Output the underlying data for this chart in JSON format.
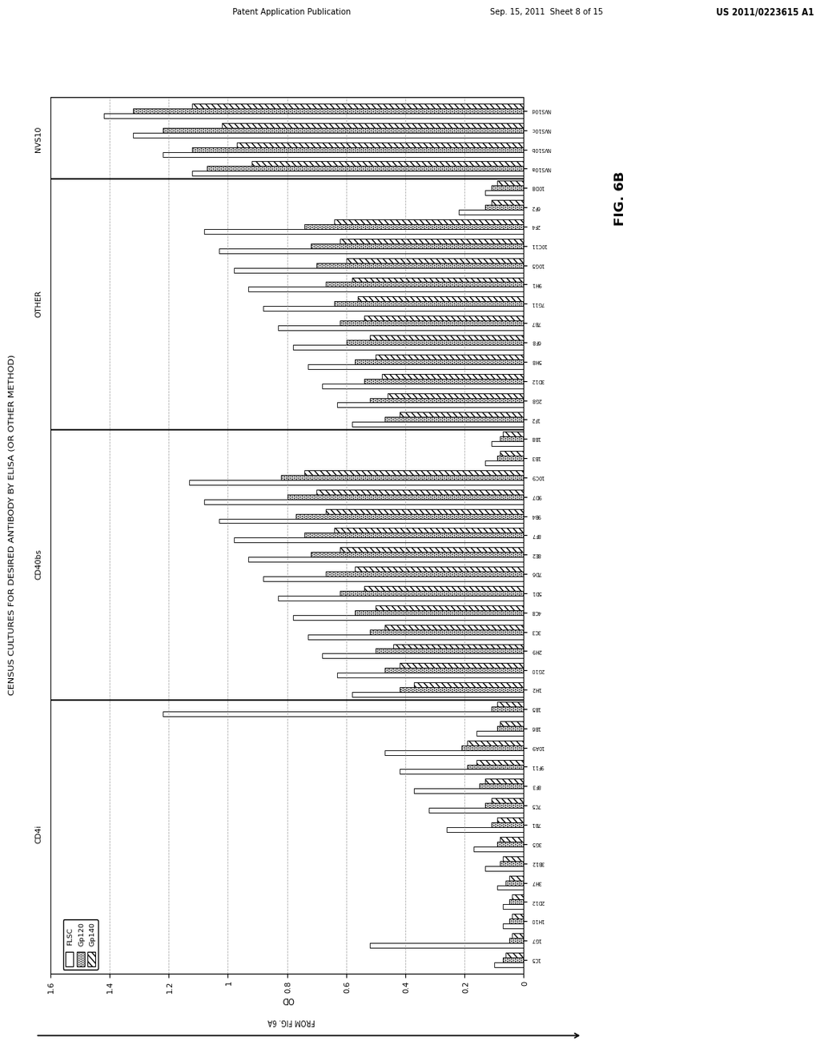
{
  "title": "CENSUS CULTURES FOR DESIRED ANTIBODY BY ELISA (OR OTHER METHOD)",
  "ylabel": "OD",
  "fig_label": "FIG. 6B",
  "from_label": "FROM FIG. 6A",
  "ylim": [
    0,
    1.6
  ],
  "yticks": [
    0,
    0.2,
    0.4,
    0.6,
    0.8,
    1.0,
    1.2,
    1.4,
    1.6
  ],
  "ytick_labels": [
    "0",
    "0.2",
    "0.4",
    "0.6",
    "0.8",
    "1",
    "1.2",
    "1.4",
    "1.6"
  ],
  "legend_labels": [
    "FLSC",
    "Gp120",
    "Gp140"
  ],
  "header_left": "Patent Application Publication",
  "header_mid": "Sep. 15, 2011  Sheet 8 of 15",
  "header_right": "US 2011/0223615 A1",
  "sections": [
    {
      "name": "CD4i",
      "samples": [
        {
          "label": "1C5",
          "FLSC": 0.1,
          "Gp120": 0.07,
          "Gp140": 0.06
        },
        {
          "label": "1G7",
          "FLSC": 0.52,
          "Gp120": 0.05,
          "Gp140": 0.04
        },
        {
          "label": "1H10",
          "FLSC": 0.07,
          "Gp120": 0.05,
          "Gp140": 0.04
        },
        {
          "label": "2D12",
          "FLSC": 0.07,
          "Gp120": 0.05,
          "Gp140": 0.04
        },
        {
          "label": "3H7",
          "FLSC": 0.09,
          "Gp120": 0.06,
          "Gp140": 0.05
        },
        {
          "label": "3B12",
          "FLSC": 0.13,
          "Gp120": 0.08,
          "Gp140": 0.07
        },
        {
          "label": "3G5",
          "FLSC": 0.17,
          "Gp120": 0.09,
          "Gp140": 0.08
        },
        {
          "label": "7B1",
          "FLSC": 0.26,
          "Gp120": 0.11,
          "Gp140": 0.09
        },
        {
          "label": "7C5",
          "FLSC": 0.32,
          "Gp120": 0.13,
          "Gp140": 0.11
        },
        {
          "label": "8F3",
          "FLSC": 0.37,
          "Gp120": 0.15,
          "Gp140": 0.13
        },
        {
          "label": "9F11",
          "FLSC": 0.42,
          "Gp120": 0.19,
          "Gp140": 0.16
        },
        {
          "label": "10A9",
          "FLSC": 0.47,
          "Gp120": 0.21,
          "Gp140": 0.19
        },
        {
          "label": "1B6",
          "FLSC": 0.16,
          "Gp120": 0.09,
          "Gp140": 0.08
        },
        {
          "label": "1B5",
          "FLSC": 1.22,
          "Gp120": 0.11,
          "Gp140": 0.09
        }
      ]
    },
    {
      "name": "CD40bs",
      "samples": [
        {
          "label": "1H2",
          "FLSC": 0.58,
          "Gp120": 0.42,
          "Gp140": 0.37
        },
        {
          "label": "2G10",
          "FLSC": 0.63,
          "Gp120": 0.47,
          "Gp140": 0.42
        },
        {
          "label": "2H9",
          "FLSC": 0.68,
          "Gp120": 0.5,
          "Gp140": 0.44
        },
        {
          "label": "3C3",
          "FLSC": 0.73,
          "Gp120": 0.52,
          "Gp140": 0.47
        },
        {
          "label": "4C8",
          "FLSC": 0.78,
          "Gp120": 0.57,
          "Gp140": 0.5
        },
        {
          "label": "5D1",
          "FLSC": 0.83,
          "Gp120": 0.62,
          "Gp140": 0.54
        },
        {
          "label": "7D6",
          "FLSC": 0.88,
          "Gp120": 0.67,
          "Gp140": 0.57
        },
        {
          "label": "8E2",
          "FLSC": 0.93,
          "Gp120": 0.72,
          "Gp140": 0.62
        },
        {
          "label": "8F7",
          "FLSC": 0.98,
          "Gp120": 0.74,
          "Gp140": 0.64
        },
        {
          "label": "9B4",
          "FLSC": 1.03,
          "Gp120": 0.77,
          "Gp140": 0.67
        },
        {
          "label": "9D7",
          "FLSC": 1.08,
          "Gp120": 0.8,
          "Gp140": 0.7
        },
        {
          "label": "10C9",
          "FLSC": 1.13,
          "Gp120": 0.82,
          "Gp140": 0.74
        },
        {
          "label": "1B3",
          "FLSC": 0.13,
          "Gp120": 0.09,
          "Gp140": 0.08
        },
        {
          "label": "1B8",
          "FLSC": 0.11,
          "Gp120": 0.08,
          "Gp140": 0.07
        }
      ]
    },
    {
      "name": "OTHER",
      "samples": [
        {
          "label": "1F2",
          "FLSC": 0.58,
          "Gp120": 0.47,
          "Gp140": 0.42
        },
        {
          "label": "2G8",
          "FLSC": 0.63,
          "Gp120": 0.52,
          "Gp140": 0.46
        },
        {
          "label": "3D12",
          "FLSC": 0.68,
          "Gp120": 0.54,
          "Gp140": 0.48
        },
        {
          "label": "5H8",
          "FLSC": 0.73,
          "Gp120": 0.57,
          "Gp140": 0.5
        },
        {
          "label": "6F8",
          "FLSC": 0.78,
          "Gp120": 0.6,
          "Gp140": 0.52
        },
        {
          "label": "7B7",
          "FLSC": 0.83,
          "Gp120": 0.62,
          "Gp140": 0.54
        },
        {
          "label": "7G11",
          "FLSC": 0.88,
          "Gp120": 0.64,
          "Gp140": 0.56
        },
        {
          "label": "9H1",
          "FLSC": 0.93,
          "Gp120": 0.67,
          "Gp140": 0.58
        },
        {
          "label": "10G5",
          "FLSC": 0.98,
          "Gp120": 0.7,
          "Gp140": 0.6
        },
        {
          "label": "10C11",
          "FLSC": 1.03,
          "Gp120": 0.72,
          "Gp140": 0.62
        },
        {
          "label": "2F4",
          "FLSC": 1.08,
          "Gp120": 0.74,
          "Gp140": 0.64
        },
        {
          "label": "6F2",
          "FLSC": 0.22,
          "Gp120": 0.13,
          "Gp140": 0.11
        },
        {
          "label": "10D8",
          "FLSC": 0.13,
          "Gp120": 0.11,
          "Gp140": 0.09
        }
      ]
    },
    {
      "name": "NVS10",
      "samples": [
        {
          "label": "NVS10a",
          "FLSC": 1.12,
          "Gp120": 1.07,
          "Gp140": 0.92
        },
        {
          "label": "NVS10b",
          "FLSC": 1.22,
          "Gp120": 1.12,
          "Gp140": 0.97
        },
        {
          "label": "NVS10c",
          "FLSC": 1.32,
          "Gp120": 1.22,
          "Gp140": 1.02
        },
        {
          "label": "NVS10d",
          "FLSC": 1.42,
          "Gp120": 1.32,
          "Gp140": 1.12
        }
      ]
    }
  ]
}
